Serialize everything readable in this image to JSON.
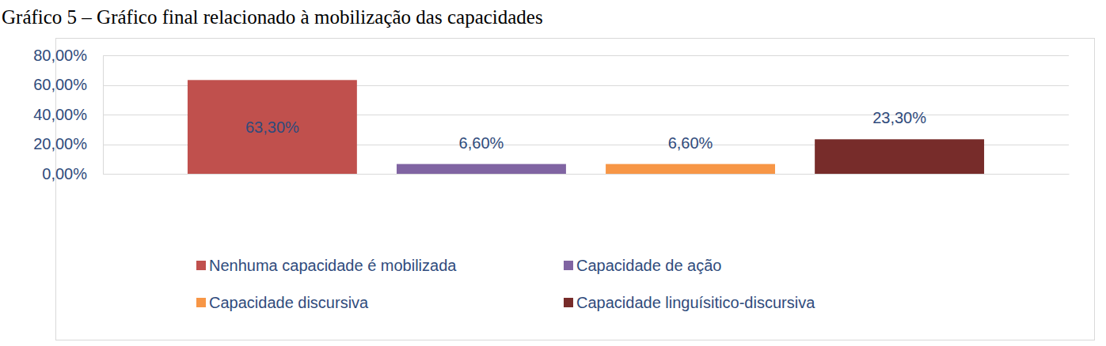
{
  "chart_data": {
    "type": "bar",
    "title": "Gráfico 5 – Gráfico final relacionado à mobilização das capacidades",
    "categories": [
      null
    ],
    "series": [
      {
        "name": "Nenhuma capacidade é mobilizada",
        "color": "#c0504d",
        "values": [
          63.3
        ],
        "value_labels": [
          "63,30%"
        ]
      },
      {
        "name": "Capacidade de ação",
        "color": "#8064a2",
        "values": [
          6.6
        ],
        "value_labels": [
          "6,60%"
        ]
      },
      {
        "name": "Capacidade discursiva",
        "color": "#f79646",
        "values": [
          6.6
        ],
        "value_labels": [
          "6,60%"
        ]
      },
      {
        "name": "Capacidade linguísitico-discursiva",
        "color": "#772c2a",
        "values": [
          23.3
        ],
        "value_labels": [
          "23,30%"
        ]
      }
    ],
    "ylim": [
      0,
      80
    ],
    "yticks": [
      {
        "value": 0,
        "label": "0,00%"
      },
      {
        "value": 20,
        "label": "20,00%"
      },
      {
        "value": 40,
        "label": "40,00%"
      },
      {
        "value": 60,
        "label": "60,00%"
      },
      {
        "value": 80,
        "label": "80,00%"
      }
    ],
    "grid": true,
    "data_labels": true,
    "legend": "bottom"
  }
}
